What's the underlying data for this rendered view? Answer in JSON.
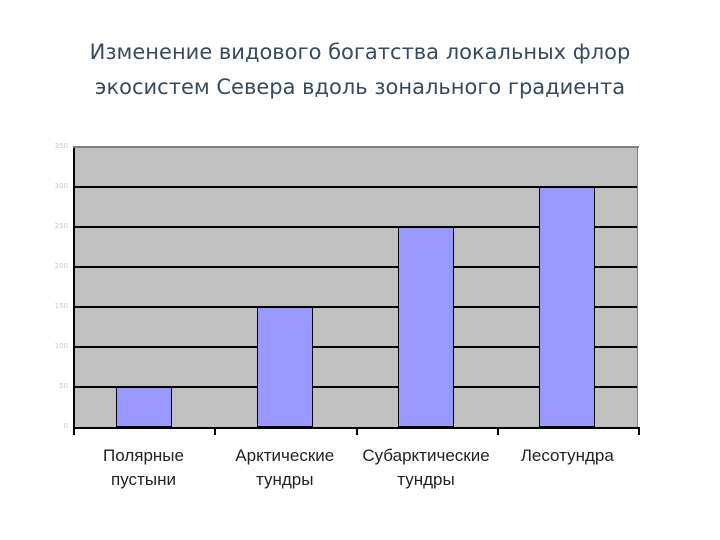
{
  "title": {
    "line1": "Изменение видового богатства  локальных флор",
    "line2": "экосистем Севера вдоль зонального градиента"
  },
  "colors": {
    "bar": "#9999ff",
    "plot_background": "#c0c0c0",
    "title": "#3a4a5e"
  },
  "y_axis": {
    "ticks": [
      "350",
      "300",
      "250",
      "200",
      "150",
      "100",
      "50",
      "0"
    ]
  },
  "x_axis": {
    "labels": [
      {
        "line1": "Полярные",
        "line2": "пустыни"
      },
      {
        "line1": "Арктические",
        "line2": "тундры"
      },
      {
        "line1": "Субарктические",
        "line2": "тундры"
      },
      {
        "line1": "Лесотундра",
        "line2": ""
      }
    ]
  },
  "chart_data": {
    "type": "bar",
    "title": "Изменение видового богатства локальных флор экосистем Севера вдоль зонального градиента",
    "categories": [
      "Полярные пустыни",
      "Арктические тундры",
      "Субарктические тундры",
      "Лесотундра"
    ],
    "values": [
      50,
      150,
      250,
      300
    ],
    "xlabel": "",
    "ylabel": "",
    "ylim": [
      0,
      350
    ],
    "yticks": [
      0,
      50,
      100,
      150,
      200,
      250,
      300,
      350
    ],
    "grid": true,
    "legend": null
  }
}
